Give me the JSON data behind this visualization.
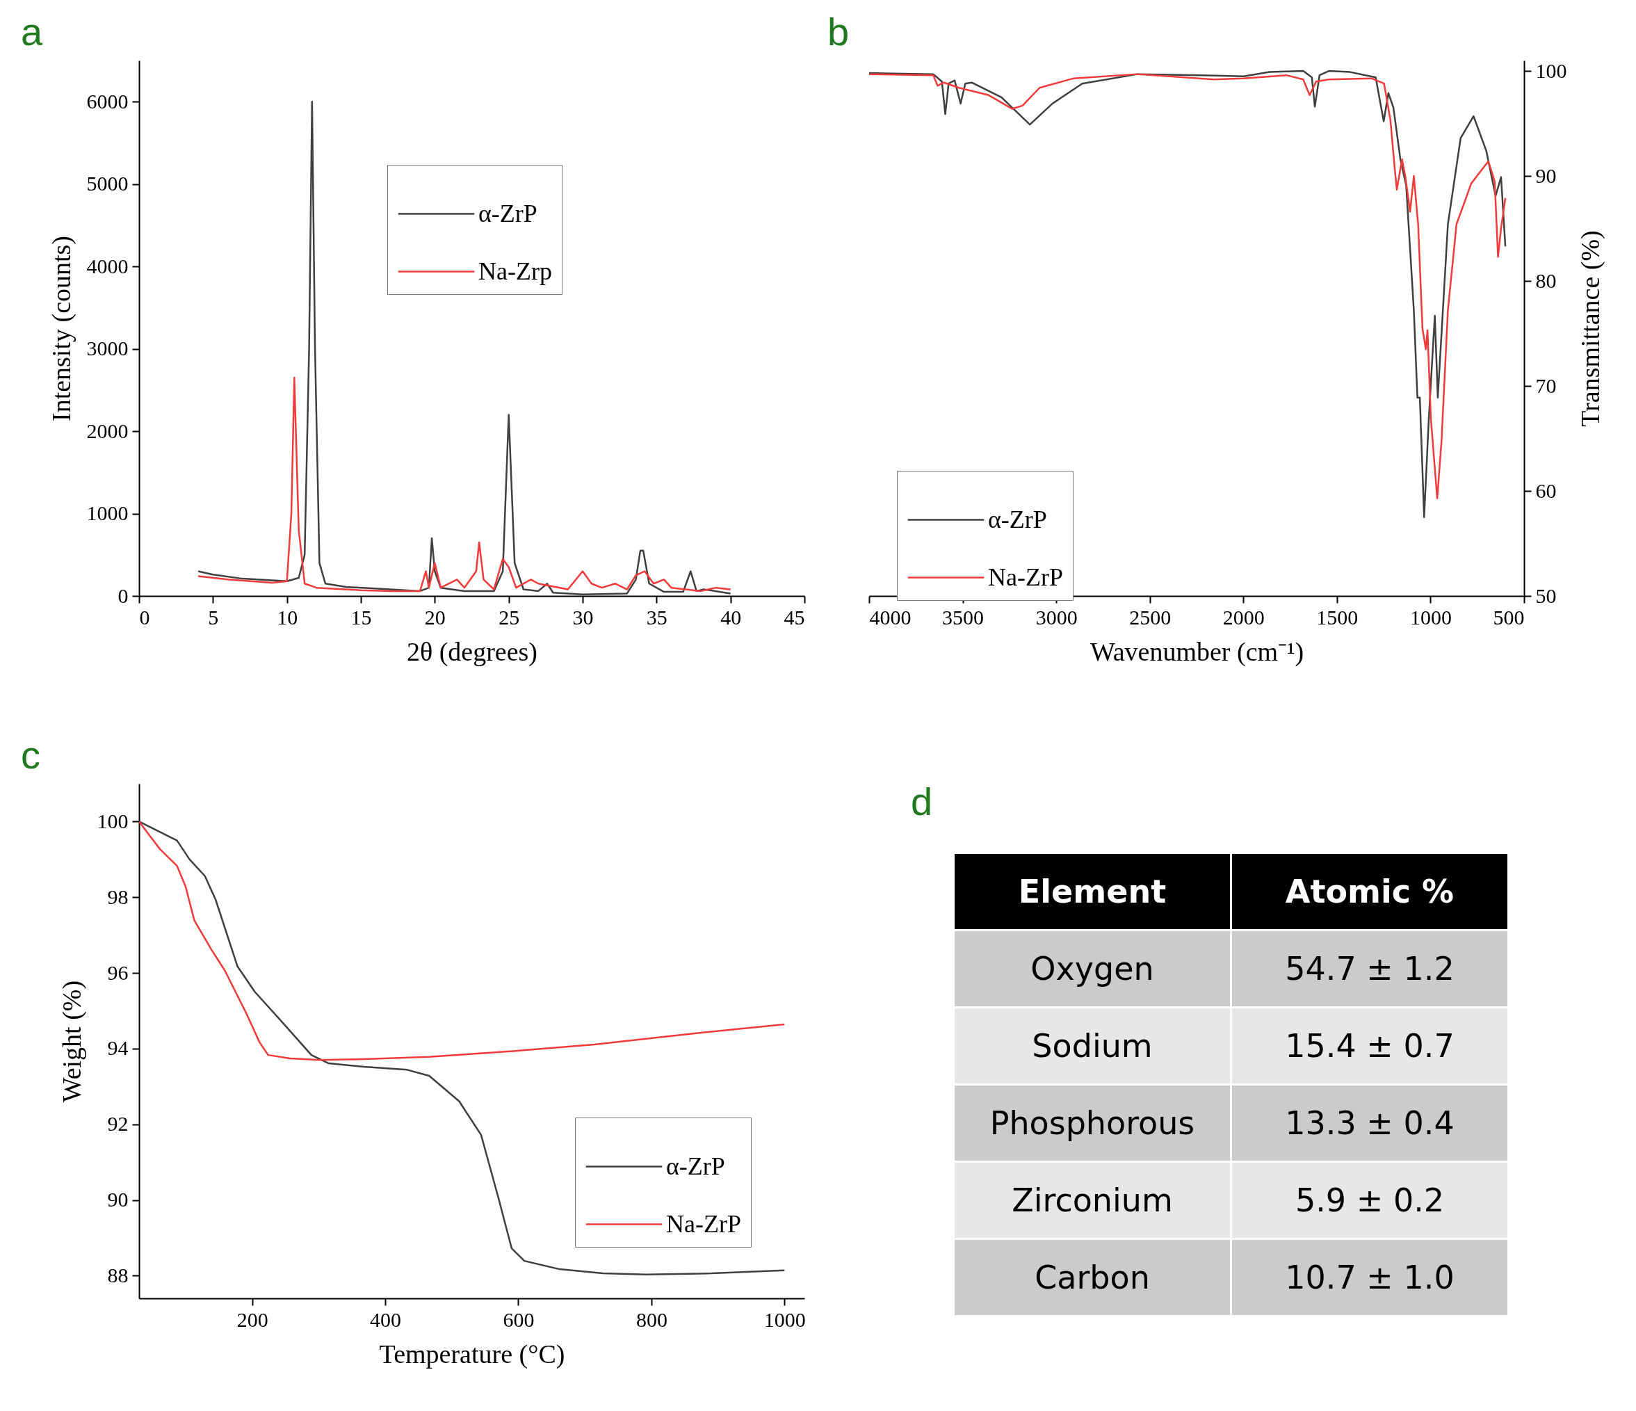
{
  "chart_data": [
    {
      "type": "line",
      "title": "a",
      "xlabel": "2θ (degrees)",
      "ylabel": "Intensity (counts)",
      "xlim": [
        0,
        45
      ],
      "xticks": [
        0,
        5,
        10,
        15,
        20,
        25,
        30,
        35,
        40,
        45
      ],
      "ylim": [
        0,
        6500
      ],
      "yticks": [
        0,
        1000,
        2000,
        3000,
        4000,
        5000,
        6000
      ],
      "legend": "top right",
      "series": [
        {
          "name": "α-ZrP",
          "color": "#3f3f3f",
          "x": [
            4,
            5,
            7,
            9,
            10,
            10.8,
            11.2,
            11.5,
            11.7,
            11.9,
            12.2,
            12.6,
            14,
            17,
            19,
            19.6,
            19.8,
            20,
            20.4,
            22,
            24,
            24.6,
            25,
            25.4,
            26,
            27,
            27.6,
            28,
            30,
            33,
            33.6,
            33.9,
            34.1,
            34.5,
            35.5,
            36.8,
            37.3,
            37.7,
            38.2,
            40
          ],
          "values": [
            300,
            260,
            210,
            190,
            180,
            220,
            500,
            3000,
            6000,
            3000,
            400,
            150,
            110,
            80,
            60,
            100,
            700,
            300,
            100,
            60,
            60,
            300,
            2200,
            400,
            80,
            60,
            150,
            40,
            20,
            30,
            200,
            550,
            550,
            150,
            50,
            50,
            300,
            60,
            80,
            30
          ]
        },
        {
          "name": "Na-Zrp",
          "color": "#f23a3a",
          "x": [
            4,
            6,
            9,
            10,
            10.3,
            10.5,
            10.8,
            11.2,
            12,
            15,
            17,
            19,
            19.4,
            19.6,
            20,
            20.4,
            21.5,
            22,
            22.8,
            23,
            23.3,
            24,
            24.6,
            25,
            25.5,
            26.5,
            27,
            29,
            30,
            30.6,
            31.3,
            32.2,
            33,
            33.6,
            34.2,
            34.8,
            35.5,
            36,
            38,
            39,
            40
          ],
          "values": [
            240,
            200,
            160,
            180,
            1000,
            2650,
            800,
            150,
            100,
            70,
            60,
            60,
            300,
            100,
            400,
            100,
            200,
            100,
            300,
            650,
            200,
            80,
            450,
            350,
            100,
            200,
            150,
            80,
            300,
            150,
            100,
            150,
            80,
            250,
            300,
            150,
            200,
            100,
            60,
            100,
            80
          ]
        }
      ]
    },
    {
      "type": "line",
      "title": "b",
      "xlabel": "Wavenumber (cm⁻¹)",
      "ylabel": "Transmittance (%)",
      "xlim": [
        4000,
        500
      ],
      "xticks": [
        4000,
        3500,
        3000,
        2500,
        2000,
        1500,
        1000,
        500
      ],
      "ylim": [
        50,
        101
      ],
      "yticks": [
        50,
        60,
        70,
        80,
        90,
        100
      ],
      "legend": "bottom left",
      "series": [
        {
          "name": "α-ZrP",
          "color": "#3f3f3f",
          "x": [
            4000,
            3657,
            3611,
            3593,
            3575,
            3543,
            3511,
            3486,
            3452,
            3293,
            3141,
            3020,
            2861,
            2566,
            2225,
            1998,
            1861,
            1680,
            1634,
            1618,
            1593,
            1543,
            1430,
            1293,
            1250,
            1225,
            1198,
            1161,
            1130,
            1089,
            1070,
            1057,
            1034,
            1009,
            977,
            961,
            907,
            839,
            770,
            702,
            652,
            623,
            600
          ],
          "values": [
            99.8,
            99.7,
            99,
            95.9,
            98.8,
            99.1,
            96.9,
            98.8,
            98.9,
            97.5,
            94.9,
            96.9,
            98.8,
            99.7,
            99.6,
            99.5,
            99.9,
            100,
            99.4,
            96.6,
            99.6,
            100,
            99.9,
            99.4,
            95.2,
            97.9,
            96.5,
            91.6,
            89.1,
            77.2,
            68.9,
            68.9,
            57.5,
            66.9,
            76.7,
            68.9,
            85.4,
            93.6,
            95.7,
            92.4,
            88.1,
            89.9,
            83.3
          ]
        },
        {
          "name": "Na-ZrP",
          "color": "#f23a3a",
          "x": [
            4000,
            3657,
            3634,
            3600,
            3520,
            3361,
            3236,
            3180,
            3089,
            2907,
            2566,
            2157,
            1998,
            1770,
            1680,
            1646,
            1611,
            1543,
            1316,
            1248,
            1214,
            1191,
            1180,
            1152,
            1134,
            1109,
            1089,
            1066,
            1043,
            1025,
            1016,
            998,
            964,
            941,
            907,
            861,
            782,
            691,
            657,
            639,
            623,
            600
          ],
          "values": [
            99.7,
            99.6,
            98.6,
            98.9,
            98.4,
            97.7,
            96.4,
            96.7,
            98.4,
            99.3,
            99.7,
            99.2,
            99.3,
            99.6,
            99.2,
            97.7,
            99,
            99.2,
            99.3,
            98.8,
            95.3,
            90.7,
            88.7,
            91.6,
            89.9,
            86.6,
            90,
            85.4,
            75.5,
            73.5,
            75.3,
            66.9,
            59.3,
            64.8,
            77.2,
            85.4,
            89.3,
            91.4,
            89.5,
            82.3,
            85,
            87.9
          ]
        }
      ]
    },
    {
      "type": "line",
      "title": "c",
      "xlabel": "Temperature (°C)",
      "ylabel": "Weight (%)",
      "xlim": [
        30,
        1030
      ],
      "xticks": [
        200,
        400,
        600,
        800,
        1000
      ],
      "ylim": [
        87.4,
        101
      ],
      "yticks": [
        88,
        90,
        92,
        94,
        96,
        98,
        100
      ],
      "legend": "bottom right",
      "series": [
        {
          "name": "α-ZrP",
          "color": "#3f3f3f",
          "x": [
            30,
            87,
            106,
            129,
            145,
            178,
            204,
            244,
            289,
            315,
            368,
            433,
            466,
            511,
            544,
            570,
            590,
            609,
            662,
            727,
            792,
            890,
            1000
          ],
          "values": [
            100,
            99.5,
            99,
            98.56,
            97.94,
            96.17,
            95.5,
            94.72,
            93.83,
            93.61,
            93.52,
            93.44,
            93.28,
            92.61,
            91.72,
            90.06,
            88.72,
            88.39,
            88.17,
            88.06,
            88.03,
            88.06,
            88.14
          ]
        },
        {
          "name": "Na-ZrP",
          "color": "#f23a3a",
          "x": [
            30,
            61,
            87,
            100,
            113,
            139,
            159,
            191,
            211,
            224,
            257,
            302,
            368,
            466,
            596,
            714,
            858,
            1000
          ],
          "values": [
            100,
            99.28,
            98.83,
            98.28,
            97.39,
            96.61,
            96.06,
            94.94,
            94.17,
            93.83,
            93.74,
            93.7,
            93.72,
            93.78,
            93.94,
            94.11,
            94.39,
            94.64
          ]
        }
      ]
    },
    {
      "type": "other",
      "title": "d",
      "annotations": [
        "Element",
        "Atomic %",
        "Oxygen",
        "54.7 ± 1.2",
        "Sodium",
        "15.4 ± 0.7",
        "Phosphorous",
        "13.3 ± 0.4",
        "Zirconium",
        "5.9 ± 0.2",
        "Carbon",
        "10.7 ± 1.0"
      ]
    }
  ]
}
